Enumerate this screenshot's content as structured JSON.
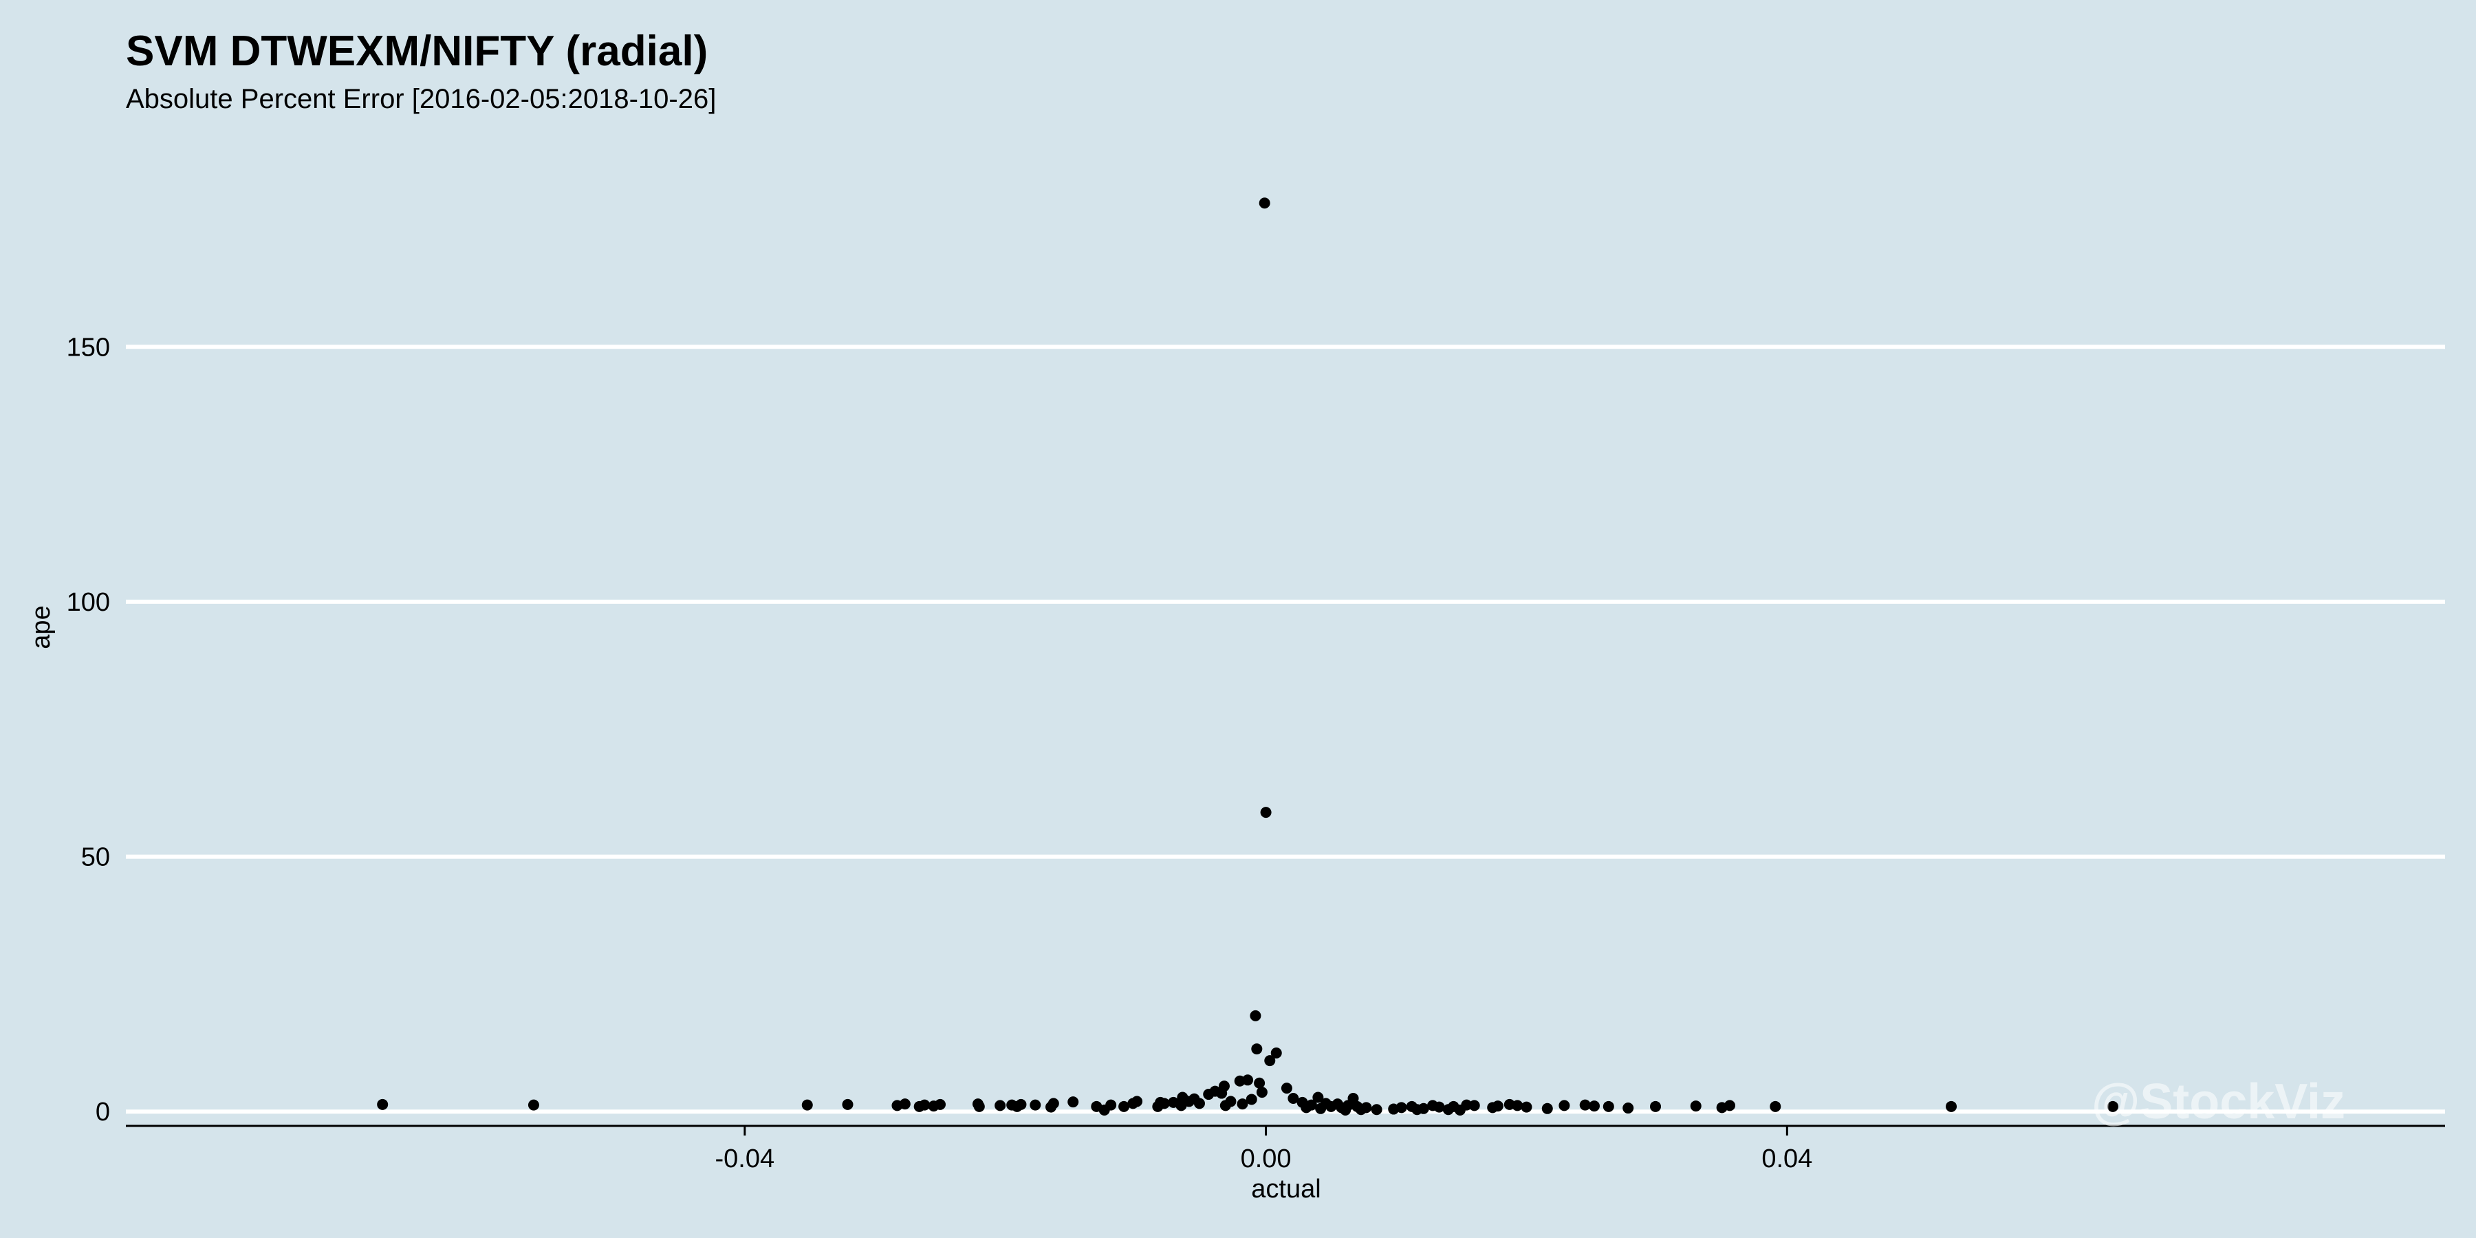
{
  "chart_data": {
    "type": "scatter",
    "title": "SVM DTWEXM/NIFTY (radial)",
    "subtitle": "Absolute Percent Error [2016-02-05:2018-10-26]",
    "xlabel": "actual",
    "ylabel": "ape",
    "xlim": [
      -0.0875,
      0.0905
    ],
    "ylim": [
      -2.8,
      187
    ],
    "x_ticks": [
      -0.04,
      0.0,
      0.04
    ],
    "x_tick_labels": [
      "-0.04",
      "0.00",
      "0.04"
    ],
    "y_ticks": [
      0,
      50,
      100,
      150
    ],
    "y_tick_labels": [
      "0",
      "50",
      "100",
      "150"
    ],
    "grid": "horizontal major lines only",
    "watermark": "@StockViz",
    "colors": {
      "background": "#d5e4eb",
      "gridline": "#ffffff",
      "points": "#000000",
      "axis": "#000000"
    },
    "series": [
      {
        "points": [
          [
            -0.0678,
            1.4
          ],
          [
            -0.0562,
            1.3
          ],
          [
            -0.0352,
            1.3
          ],
          [
            -0.0321,
            1.4
          ],
          [
            -0.0283,
            1.2
          ],
          [
            -0.0277,
            1.5
          ],
          [
            -0.0266,
            1.0
          ],
          [
            -0.0262,
            1.3
          ],
          [
            -0.0255,
            1.1
          ],
          [
            -0.025,
            1.4
          ],
          [
            -0.0221,
            1.5
          ],
          [
            -0.022,
            1.0
          ],
          [
            -0.0204,
            1.2
          ],
          [
            -0.0195,
            1.3
          ],
          [
            -0.0191,
            1.0
          ],
          [
            -0.0188,
            1.4
          ],
          [
            -0.0177,
            1.3
          ],
          [
            -0.0165,
            0.9
          ],
          [
            -0.0163,
            1.6
          ],
          [
            -0.0148,
            1.9
          ],
          [
            -0.013,
            1.0
          ],
          [
            -0.0124,
            0.3
          ],
          [
            -0.0119,
            1.3
          ],
          [
            -0.0109,
            1.0
          ],
          [
            -0.0102,
            1.6
          ],
          [
            -0.0099,
            2.0
          ],
          [
            -0.0083,
            1.0
          ],
          [
            -0.0081,
            1.8
          ],
          [
            -0.0078,
            1.6
          ],
          [
            -0.0071,
            1.8
          ],
          [
            -0.0065,
            1.2
          ],
          [
            -0.0064,
            2.8
          ],
          [
            -0.0059,
            2.0
          ],
          [
            -0.0055,
            2.5
          ],
          [
            -0.0051,
            1.6
          ],
          [
            -0.0044,
            3.4
          ],
          [
            -0.0039,
            4.0
          ],
          [
            -0.0034,
            3.6
          ],
          [
            -0.0032,
            5.0
          ],
          [
            -0.0031,
            1.2
          ],
          [
            -0.0027,
            2.0
          ],
          [
            -0.002,
            6.0
          ],
          [
            -0.0018,
            1.5
          ],
          [
            -0.0014,
            6.2
          ],
          [
            -0.0011,
            2.4
          ],
          [
            -0.0008,
            18.8
          ],
          [
            -0.0007,
            12.3
          ],
          [
            -0.0005,
            5.6
          ],
          [
            -0.0003,
            3.8
          ],
          [
            -0.0001,
            178.2
          ],
          [
            0.0,
            58.7
          ],
          [
            0.0003,
            10.0
          ],
          [
            0.0008,
            11.5
          ],
          [
            0.0016,
            4.6
          ],
          [
            0.0021,
            2.6
          ],
          [
            0.0028,
            1.8
          ],
          [
            0.0031,
            0.8
          ],
          [
            0.0035,
            1.3
          ],
          [
            0.004,
            2.8
          ],
          [
            0.0042,
            0.6
          ],
          [
            0.0046,
            1.6
          ],
          [
            0.005,
            1.0
          ],
          [
            0.0055,
            1.5
          ],
          [
            0.0058,
            0.8
          ],
          [
            0.0061,
            0.3
          ],
          [
            0.0063,
            1.2
          ],
          [
            0.0067,
            2.6
          ],
          [
            0.007,
            1.0
          ],
          [
            0.0073,
            0.4
          ],
          [
            0.0077,
            0.8
          ],
          [
            0.0085,
            0.4
          ],
          [
            0.0098,
            0.5
          ],
          [
            0.0104,
            0.8
          ],
          [
            0.0112,
            1.0
          ],
          [
            0.0116,
            0.4
          ],
          [
            0.0121,
            0.6
          ],
          [
            0.0128,
            1.2
          ],
          [
            0.0133,
            0.9
          ],
          [
            0.014,
            0.4
          ],
          [
            0.0144,
            1.0
          ],
          [
            0.0149,
            0.3
          ],
          [
            0.0154,
            1.3
          ],
          [
            0.016,
            1.2
          ],
          [
            0.0174,
            0.8
          ],
          [
            0.0178,
            1.1
          ],
          [
            0.0187,
            1.4
          ],
          [
            0.0193,
            1.2
          ],
          [
            0.02,
            0.9
          ],
          [
            0.0216,
            0.6
          ],
          [
            0.0229,
            1.2
          ],
          [
            0.0245,
            1.3
          ],
          [
            0.0252,
            1.1
          ],
          [
            0.0263,
            1.0
          ],
          [
            0.0278,
            0.7
          ],
          [
            0.0299,
            1.0
          ],
          [
            0.033,
            1.1
          ],
          [
            0.035,
            0.8
          ],
          [
            0.0356,
            1.2
          ],
          [
            0.0391,
            1.0
          ],
          [
            0.0526,
            1.0
          ],
          [
            0.065,
            1.0
          ]
        ]
      }
    ]
  }
}
